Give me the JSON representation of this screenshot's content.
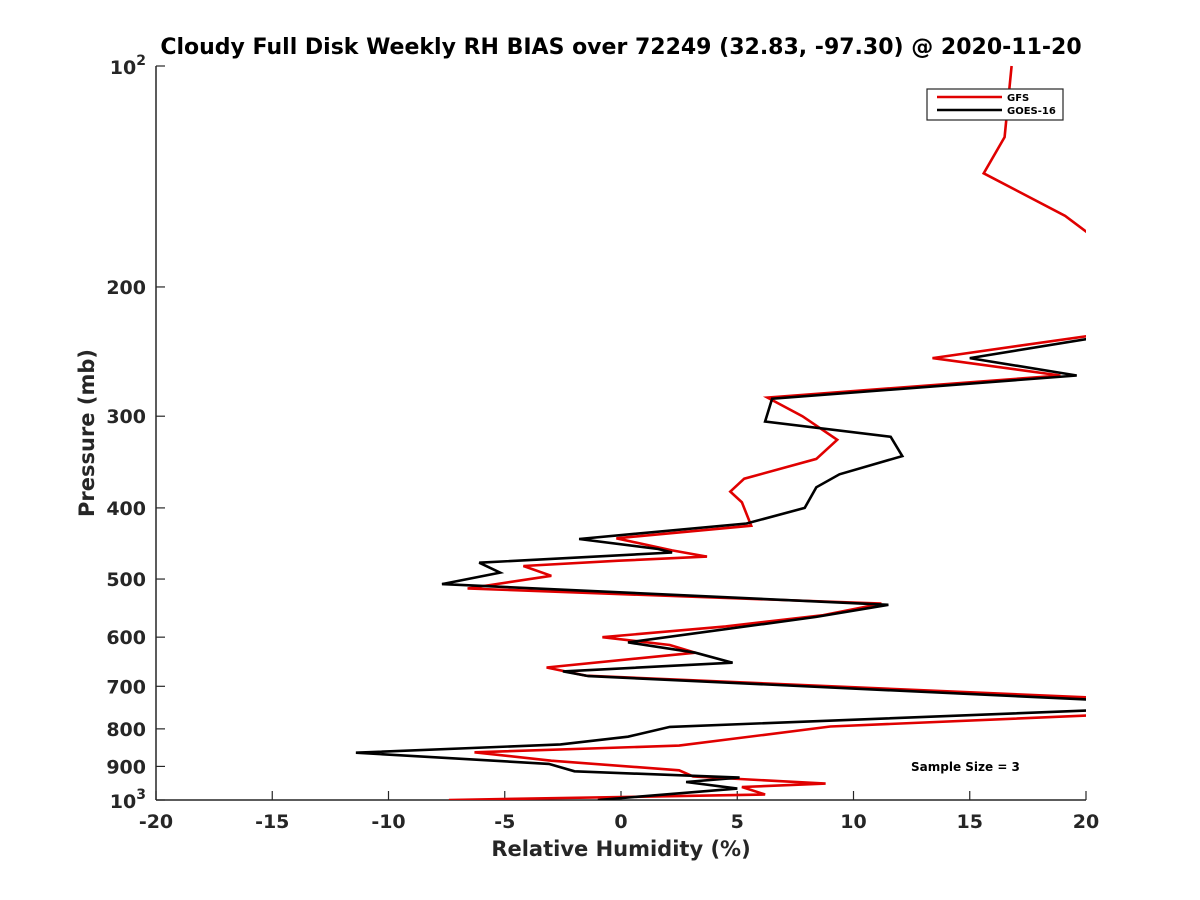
{
  "chart_data": {
    "type": "line",
    "title": "Cloudy Full Disk Weekly RH BIAS over 72249 (32.83, -97.30) @ 2020-11-20",
    "xlabel": "Relative Humidity (%)",
    "ylabel": "Pressure (mb)",
    "xlim": [
      -20,
      20
    ],
    "ylim": [
      100,
      1000
    ],
    "y_scale": "log",
    "y_reversed": true,
    "x_ticks": [
      "-20",
      "-15",
      "-10",
      "-5",
      "0",
      "5",
      "10",
      "15",
      "20"
    ],
    "y_ticks": [
      {
        "value": 100,
        "base": "10",
        "exp": "2",
        "label": ""
      },
      {
        "value": 200,
        "label": "200"
      },
      {
        "value": 300,
        "label": "300"
      },
      {
        "value": 400,
        "label": "400"
      },
      {
        "value": 500,
        "label": "500"
      },
      {
        "value": 600,
        "label": "600"
      },
      {
        "value": 700,
        "label": "700"
      },
      {
        "value": 800,
        "label": "800"
      },
      {
        "value": 900,
        "label": "900"
      },
      {
        "value": 1000,
        "base": "10",
        "exp": "3",
        "label": ""
      }
    ],
    "grid": false,
    "legend_position": "top-right",
    "annotation": "Sample Size = 3",
    "series": [
      {
        "name": "GFS",
        "color": "#e00000",
        "points": [
          [
            16.8,
            100
          ],
          [
            16.5,
            125
          ],
          [
            15.6,
            140
          ],
          [
            19.1,
            160
          ],
          [
            20.2,
            170
          ],
          [
            20.2,
            233
          ],
          [
            13.4,
            250
          ],
          [
            18.9,
            264
          ],
          [
            6.3,
            283
          ],
          [
            7.8,
            300
          ],
          [
            9.3,
            323
          ],
          [
            8.4,
            343
          ],
          [
            5.3,
            365
          ],
          [
            4.7,
            380
          ],
          [
            5.2,
            393
          ],
          [
            5.6,
            423
          ],
          [
            -0.2,
            440
          ],
          [
            2.2,
            457
          ],
          [
            3.7,
            466
          ],
          [
            -0.1,
            472
          ],
          [
            -4.2,
            480
          ],
          [
            -3.0,
            495
          ],
          [
            -6.6,
            515
          ],
          [
            11.2,
            540
          ],
          [
            8.7,
            560
          ],
          [
            4.5,
            580
          ],
          [
            -0.8,
            600
          ],
          [
            2.1,
            615
          ],
          [
            3.2,
            630
          ],
          [
            -3.2,
            660
          ],
          [
            -1.5,
            677
          ],
          [
            20.2,
            725
          ],
          [
            20.2,
            767
          ],
          [
            9.0,
            794
          ],
          [
            2.5,
            843
          ],
          [
            -6.3,
            861
          ],
          [
            -3.0,
            884
          ],
          [
            2.5,
            911
          ],
          [
            3.1,
            929
          ],
          [
            8.8,
            950
          ],
          [
            5.2,
            960
          ],
          [
            6.2,
            983
          ],
          [
            -7.4,
            1000
          ]
        ]
      },
      {
        "name": "GOES-16",
        "color": "#000000",
        "points": [
          [
            20.2,
            235
          ],
          [
            15.0,
            250
          ],
          [
            19.6,
            264
          ],
          [
            6.5,
            284
          ],
          [
            6.2,
            305
          ],
          [
            11.6,
            320
          ],
          [
            12.1,
            340
          ],
          [
            9.4,
            360
          ],
          [
            8.4,
            375
          ],
          [
            7.9,
            400
          ],
          [
            5.4,
            420
          ],
          [
            -1.8,
            441
          ],
          [
            1.6,
            455
          ],
          [
            2.2,
            460
          ],
          [
            -6.1,
            475
          ],
          [
            -5.2,
            490
          ],
          [
            -7.7,
            508
          ],
          [
            11.5,
            542
          ],
          [
            8.4,
            563
          ],
          [
            0.3,
            610
          ],
          [
            3.2,
            630
          ],
          [
            4.8,
            650
          ],
          [
            -2.5,
            668
          ],
          [
            -1.4,
            678
          ],
          [
            20.2,
            730
          ],
          [
            20.2,
            755
          ],
          [
            2.1,
            795
          ],
          [
            0.3,
            820
          ],
          [
            -2.6,
            840
          ],
          [
            -11.4,
            862
          ],
          [
            -3.1,
            893
          ],
          [
            -2.0,
            914
          ],
          [
            5.1,
            932
          ],
          [
            2.8,
            945
          ],
          [
            5.0,
            965
          ],
          [
            -1.0,
            1000
          ]
        ]
      }
    ]
  }
}
